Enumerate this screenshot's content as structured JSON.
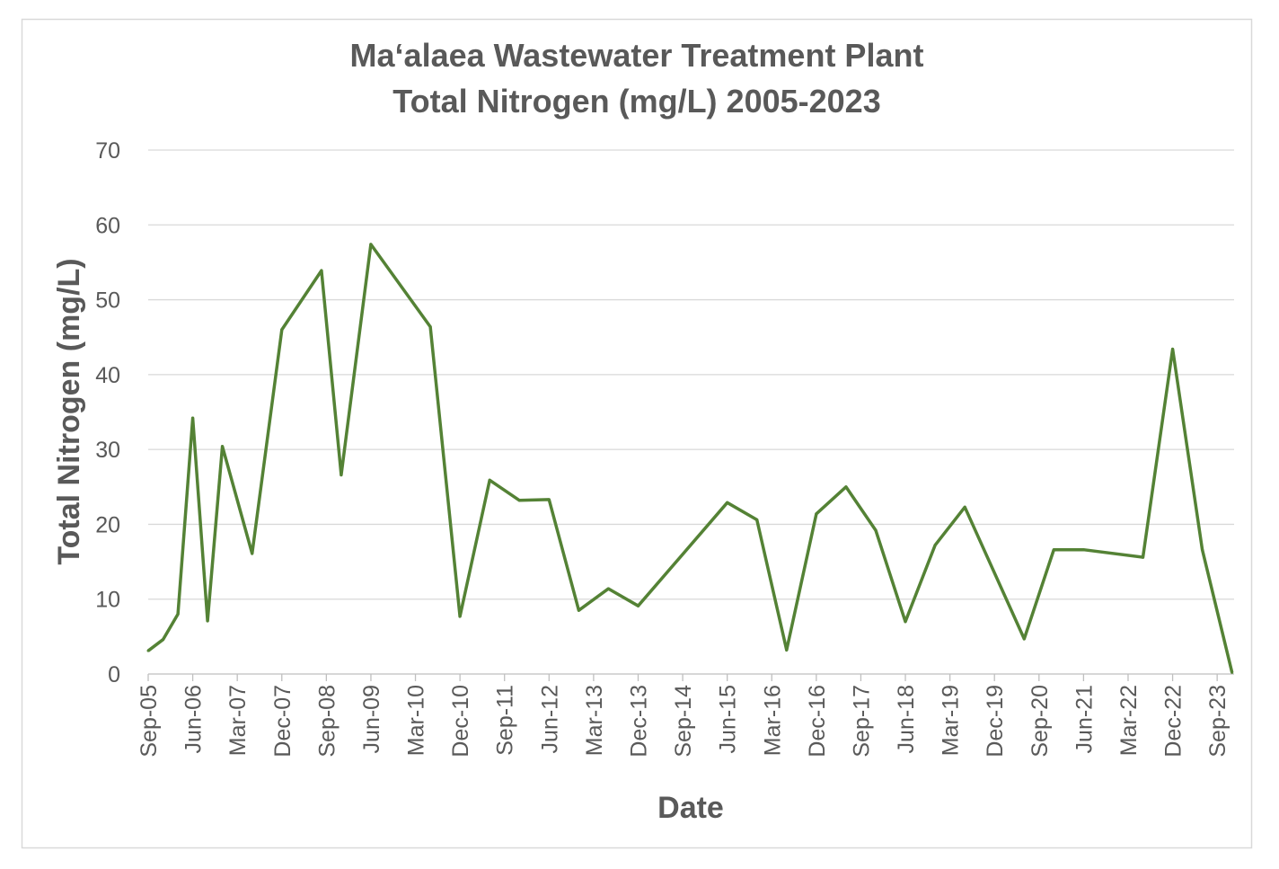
{
  "chart_data": {
    "type": "line",
    "title": [
      "Ma‘alaea Wastewater Treatment Plant",
      "Total Nitrogen (mg/L) 2005-2023"
    ],
    "xlabel": "Date",
    "ylabel": "Total Nitrogen (mg/L)",
    "ylim": [
      0,
      70
    ],
    "yticks": [
      0,
      10,
      20,
      30,
      40,
      50,
      60,
      70
    ],
    "x_units": "months since Sep-05",
    "xlim": [
      0,
      219
    ],
    "xtick_labels": [
      "Sep-05",
      "Jun-06",
      "Mar-07",
      "Dec-07",
      "Sep-08",
      "Jun-09",
      "Mar-10",
      "Dec-10",
      "Sep-11",
      "Jun-12",
      "Mar-13",
      "Dec-13",
      "Sep-14",
      "Jun-15",
      "Mar-16",
      "Dec-16",
      "Sep-17",
      "Jun-18",
      "Mar-19",
      "Dec-19",
      "Sep-20",
      "Jun-21",
      "Mar-22",
      "Dec-22",
      "Sep-23"
    ],
    "xtick_step_months": 9,
    "grid": true,
    "legend": "none",
    "series": [
      {
        "name": "Total Nitrogen (mg/L)",
        "color": "#548235",
        "x": [
          0,
          3,
          6,
          9,
          12,
          15,
          21,
          27,
          35,
          39,
          45,
          57,
          63,
          69,
          75,
          81,
          87,
          93,
          99,
          117,
          123,
          129,
          135,
          141,
          147,
          153,
          159,
          165,
          177,
          183,
          189,
          201,
          207,
          213,
          219
        ],
        "y": [
          3.1,
          4.6,
          8.0,
          34.2,
          7.1,
          30.4,
          16.1,
          46.0,
          53.9,
          26.6,
          57.4,
          46.4,
          7.7,
          25.9,
          23.2,
          23.3,
          8.5,
          11.4,
          9.1,
          22.9,
          20.6,
          3.2,
          21.4,
          25.0,
          19.2,
          7.0,
          17.2,
          22.3,
          4.7,
          16.6,
          16.6,
          15.6,
          43.4,
          16.6,
          0.2
        ]
      }
    ]
  }
}
